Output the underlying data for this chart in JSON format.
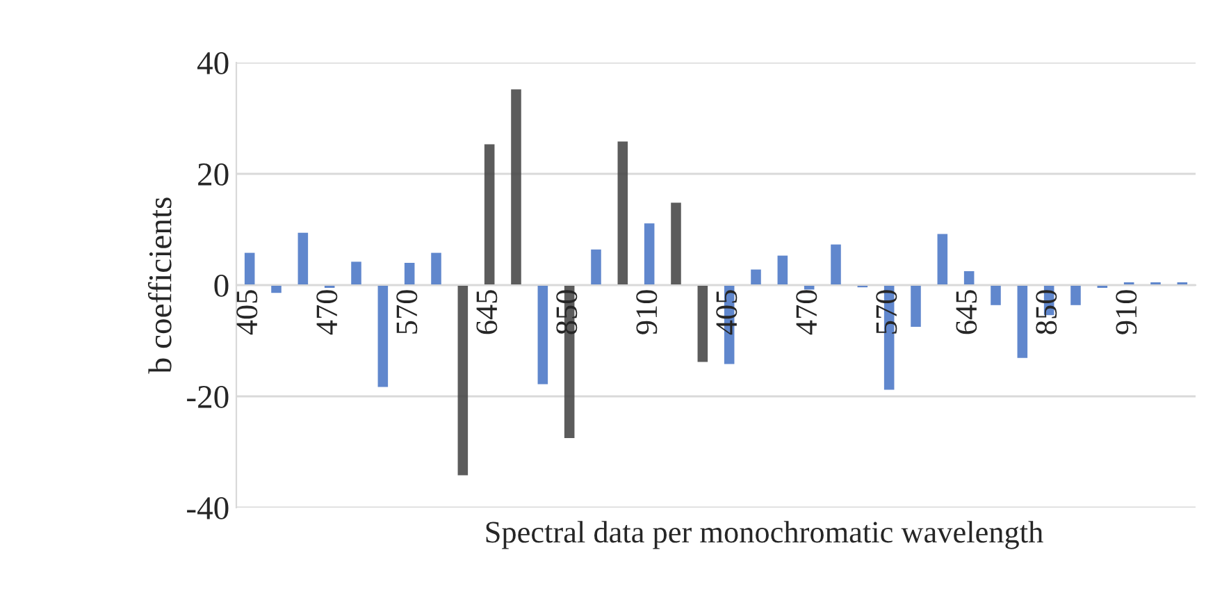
{
  "chart_data": {
    "type": "bar",
    "ylabel": "b coefficients",
    "xlabel": "Spectral data per monochromatic wavelength",
    "categories": [
      "405",
      null,
      null,
      "470",
      null,
      null,
      "570",
      null,
      null,
      "645",
      null,
      null,
      "850",
      null,
      null,
      "910",
      null,
      null,
      "405",
      null,
      null,
      "470",
      null,
      null,
      "570",
      null,
      null,
      "645",
      null,
      null,
      "850",
      null,
      null,
      "910",
      null,
      null
    ],
    "values": [
      5.8,
      -1.4,
      9.4,
      -0.5,
      4.2,
      -18.3,
      4,
      5.8,
      -34.2,
      25.3,
      35.2,
      -17.8,
      -27.5,
      6.4,
      25.8,
      11.1,
      14.8,
      -13.8,
      -14.2,
      2.8,
      5.3,
      -0.8,
      7.3,
      -0.4,
      -18.8,
      -7.5,
      9.2,
      2.5,
      -3.6,
      -13.1,
      -5.4,
      -3.6,
      -0.5,
      0.5,
      0.5,
      0.5
    ],
    "colors": [
      "#4472c4",
      "#4472c4",
      "#4472c4",
      "#4472c4",
      "#4472c4",
      "#4472c4",
      "#4472c4",
      "#4472c4",
      "#404040",
      "#404040",
      "#404040",
      "#4472c4",
      "#404040",
      "#4472c4",
      "#404040",
      "#4472c4",
      "#404040",
      "#404040",
      "#4472c4",
      "#4472c4",
      "#4472c4",
      "#4472c4",
      "#4472c4",
      "#4472c4",
      "#4472c4",
      "#4472c4",
      "#4472c4",
      "#4472c4",
      "#4472c4",
      "#4472c4",
      "#4472c4",
      "#4472c4",
      "#4472c4",
      "#4472c4",
      "#4472c4",
      "#4472c4"
    ],
    "ylim": [
      -40,
      40
    ],
    "yticks": [
      -40,
      -20,
      0,
      20,
      40
    ],
    "grid": "y",
    "legend": false
  }
}
